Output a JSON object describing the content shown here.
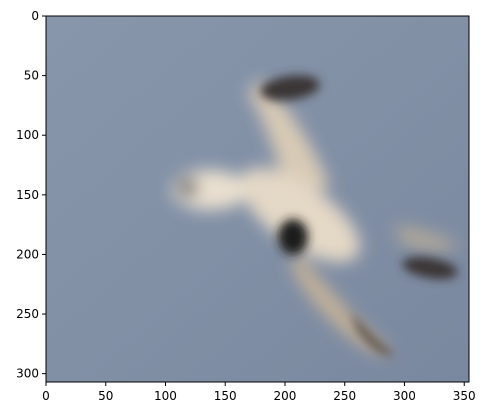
{
  "image": {
    "subject": "bird-in-flight",
    "x_range": [
      0,
      354
    ],
    "y_range": [
      0,
      307
    ],
    "background_color": "#8290a6",
    "wing_color": "#e2d6c3",
    "wing_tip_color": "#2f2c2c"
  },
  "axes": {
    "x_ticks": [
      {
        "value": 0,
        "label": "0"
      },
      {
        "value": 50,
        "label": "50"
      },
      {
        "value": 100,
        "label": "100"
      },
      {
        "value": 150,
        "label": "150"
      },
      {
        "value": 200,
        "label": "200"
      },
      {
        "value": 250,
        "label": "250"
      },
      {
        "value": 300,
        "label": "300"
      },
      {
        "value": 350,
        "label": "350"
      }
    ],
    "y_ticks": [
      {
        "value": 0,
        "label": "0"
      },
      {
        "value": 50,
        "label": "50"
      },
      {
        "value": 100,
        "label": "100"
      },
      {
        "value": 150,
        "label": "150"
      },
      {
        "value": 200,
        "label": "200"
      },
      {
        "value": 250,
        "label": "250"
      },
      {
        "value": 300,
        "label": "300"
      }
    ]
  }
}
